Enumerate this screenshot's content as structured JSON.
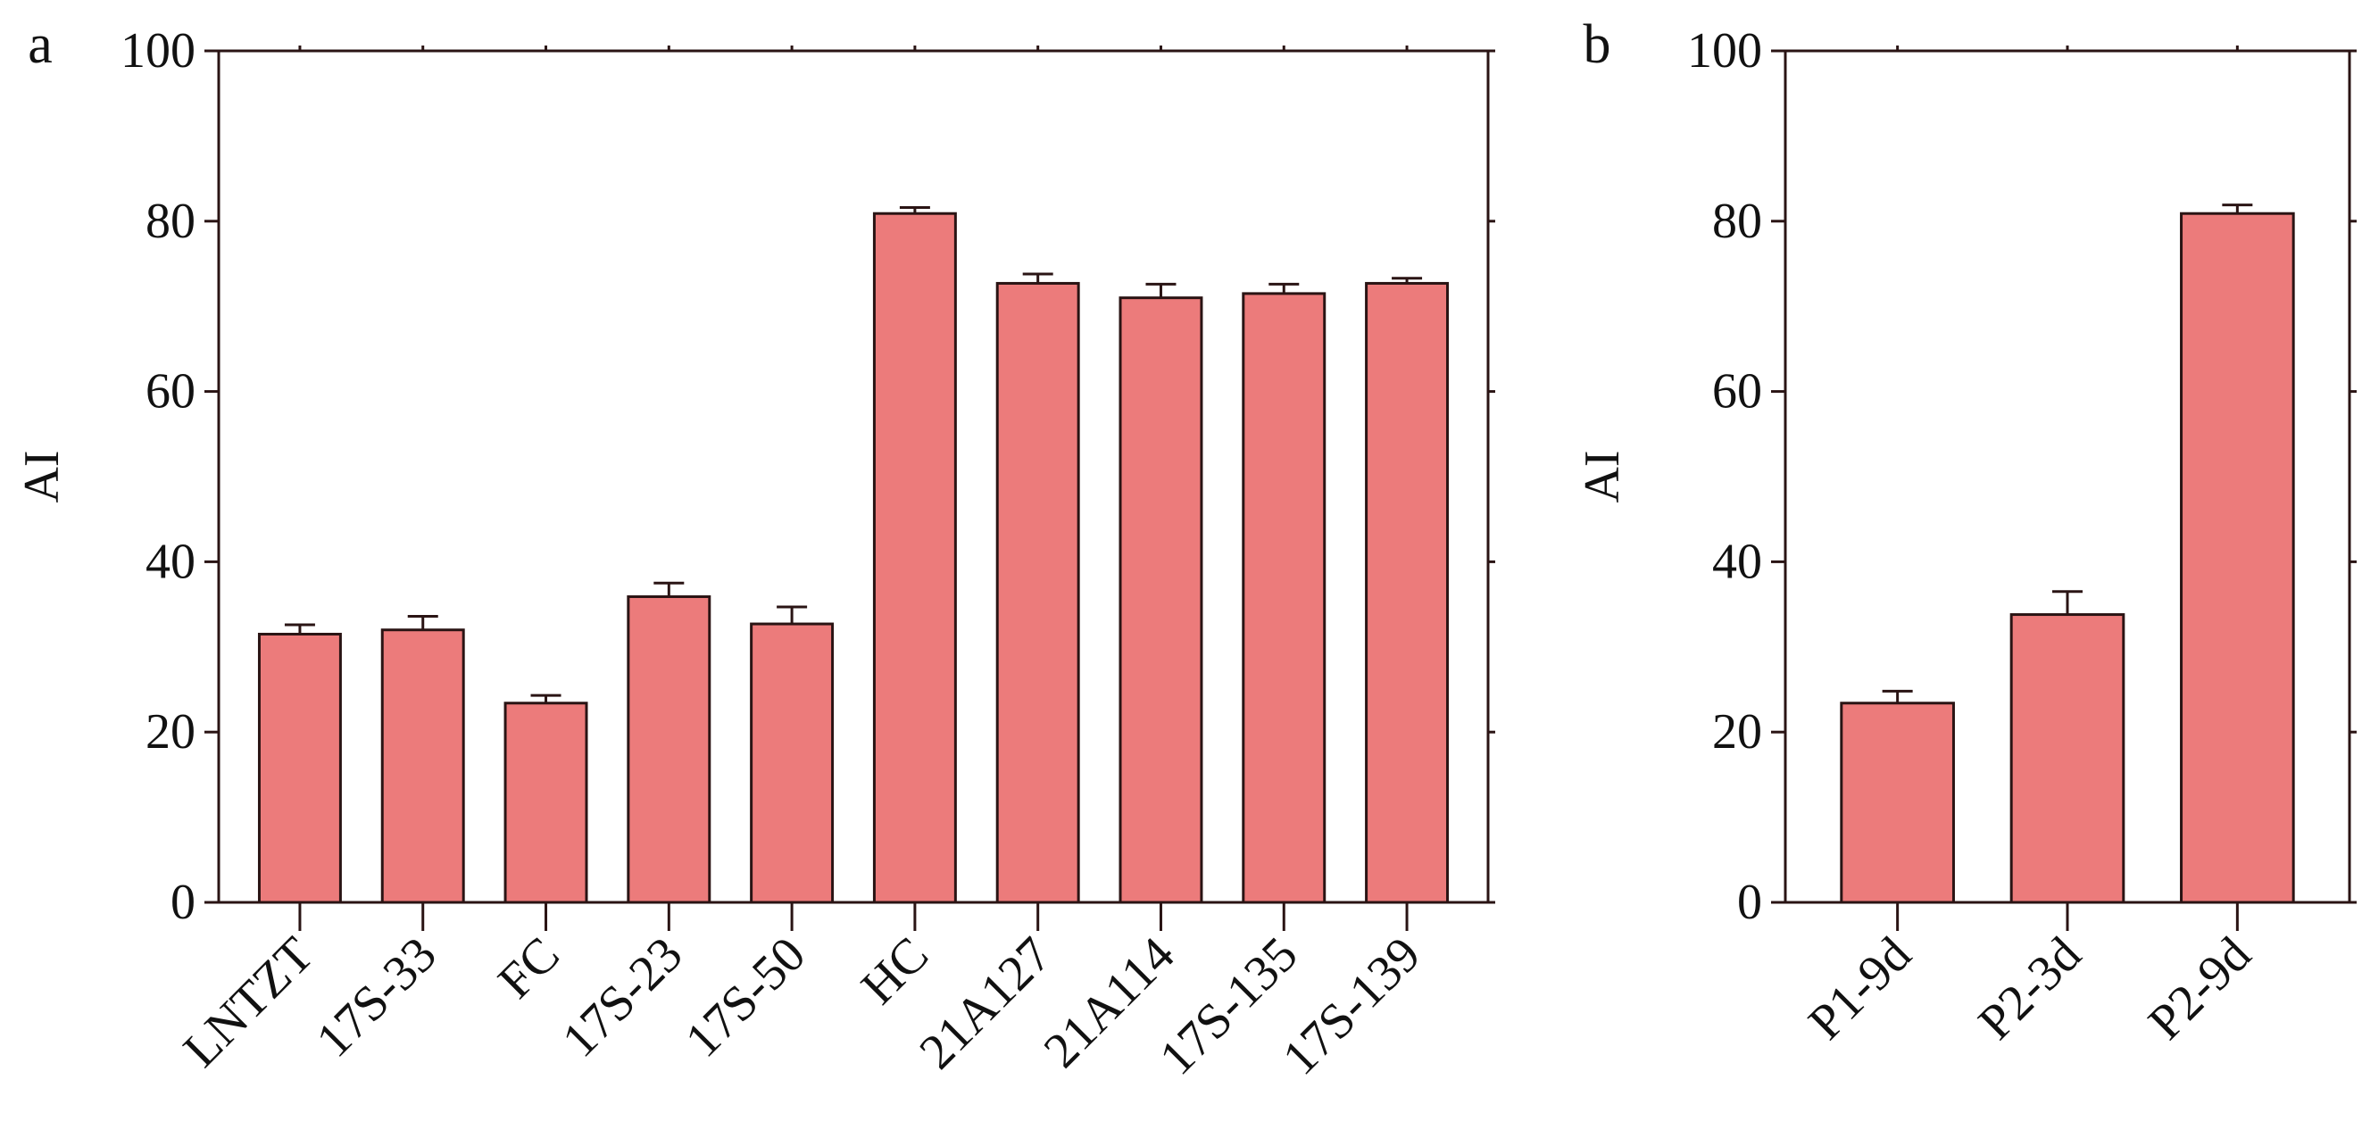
{
  "chart_data": [
    {
      "type": "bar",
      "panel_label": "a",
      "ylabel": "AI",
      "categories": [
        "LNTZT",
        "17S-33",
        "FC",
        "17S-23",
        "17S-50",
        "HC",
        "21A127",
        "21A114",
        "17S-135",
        "17S-139"
      ],
      "values": [
        31.5,
        32.0,
        23.4,
        35.9,
        32.7,
        80.9,
        72.7,
        71.0,
        71.5,
        72.7
      ],
      "errors": [
        1.1,
        1.6,
        0.9,
        1.6,
        2.0,
        0.7,
        1.1,
        1.6,
        1.1,
        0.6
      ],
      "color": "#ec7b7b",
      "ylim": [
        0,
        100
      ],
      "yticks": [
        0,
        20,
        40,
        60,
        80,
        100
      ]
    },
    {
      "type": "bar",
      "panel_label": "b",
      "ylabel": "AI",
      "categories": [
        "P1-9d",
        "P2-3d",
        "P2-9d"
      ],
      "values": [
        23.4,
        33.8,
        80.9
      ],
      "errors": [
        1.4,
        2.7,
        1.0
      ],
      "color": "#ec7b7b",
      "ylim": [
        0,
        100
      ],
      "yticks": [
        0,
        20,
        40,
        60,
        80,
        100
      ]
    }
  ]
}
